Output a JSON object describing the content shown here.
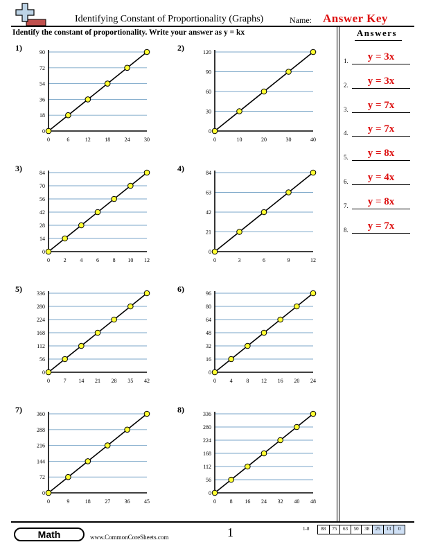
{
  "header": {
    "title": "Identifying Constant of Proportionality (Graphs)",
    "name_label": "Name:",
    "name_value": "Answer Key"
  },
  "instructions": "Identify the constant of proportionality. Write your answer as y = kx",
  "answers": {
    "title": "Answers",
    "items": [
      {
        "num": "1.",
        "value": "y = 3x"
      },
      {
        "num": "2.",
        "value": "y = 3x"
      },
      {
        "num": "3.",
        "value": "y = 7x"
      },
      {
        "num": "4.",
        "value": "y = 7x"
      },
      {
        "num": "5.",
        "value": "y = 8x"
      },
      {
        "num": "6.",
        "value": "y = 4x"
      },
      {
        "num": "7.",
        "value": "y = 8x"
      },
      {
        "num": "8.",
        "value": "y = 7x"
      }
    ]
  },
  "problems": [
    {
      "num": "1)",
      "xticks": [
        0,
        6,
        12,
        18,
        24,
        30
      ],
      "yticks": [
        0,
        18,
        36,
        54,
        72,
        90
      ],
      "points": [
        [
          0,
          0
        ],
        [
          6,
          18
        ],
        [
          12,
          36
        ],
        [
          18,
          54
        ],
        [
          24,
          72
        ],
        [
          30,
          90
        ]
      ]
    },
    {
      "num": "2)",
      "xticks": [
        0,
        10,
        20,
        30,
        40
      ],
      "yticks": [
        0,
        30,
        60,
        90,
        120
      ],
      "points": [
        [
          0,
          0
        ],
        [
          10,
          30
        ],
        [
          20,
          60
        ],
        [
          30,
          90
        ],
        [
          40,
          120
        ]
      ]
    },
    {
      "num": "3)",
      "xticks": [
        0,
        2,
        4,
        6,
        8,
        10,
        12
      ],
      "yticks": [
        0,
        14,
        28,
        42,
        56,
        70,
        84
      ],
      "points": [
        [
          0,
          0
        ],
        [
          2,
          14
        ],
        [
          4,
          28
        ],
        [
          6,
          42
        ],
        [
          8,
          56
        ],
        [
          10,
          70
        ],
        [
          12,
          84
        ]
      ]
    },
    {
      "num": "4)",
      "xticks": [
        0,
        3,
        6,
        9,
        12
      ],
      "yticks": [
        0,
        21,
        42,
        63,
        84
      ],
      "points": [
        [
          0,
          0
        ],
        [
          3,
          21
        ],
        [
          6,
          42
        ],
        [
          9,
          63
        ],
        [
          12,
          84
        ]
      ]
    },
    {
      "num": "5)",
      "xticks": [
        0,
        7,
        14,
        21,
        28,
        35,
        42
      ],
      "yticks": [
        0,
        56,
        112,
        168,
        224,
        280,
        336
      ],
      "points": [
        [
          0,
          0
        ],
        [
          7,
          56
        ],
        [
          14,
          112
        ],
        [
          21,
          168
        ],
        [
          28,
          224
        ],
        [
          35,
          280
        ],
        [
          42,
          336
        ]
      ]
    },
    {
      "num": "6)",
      "xticks": [
        0,
        4,
        8,
        12,
        16,
        20,
        24
      ],
      "yticks": [
        0,
        16,
        32,
        48,
        64,
        80,
        96
      ],
      "points": [
        [
          0,
          0
        ],
        [
          4,
          16
        ],
        [
          8,
          32
        ],
        [
          12,
          48
        ],
        [
          16,
          64
        ],
        [
          20,
          80
        ],
        [
          24,
          96
        ]
      ]
    },
    {
      "num": "7)",
      "xticks": [
        0,
        9,
        18,
        27,
        36,
        45
      ],
      "yticks": [
        0,
        72,
        144,
        216,
        288,
        360
      ],
      "points": [
        [
          0,
          0
        ],
        [
          9,
          72
        ],
        [
          18,
          144
        ],
        [
          27,
          216
        ],
        [
          36,
          288
        ],
        [
          45,
          360
        ]
      ]
    },
    {
      "num": "8)",
      "xticks": [
        0,
        8,
        16,
        24,
        32,
        40,
        48
      ],
      "yticks": [
        0,
        56,
        112,
        168,
        224,
        280,
        336
      ],
      "points": [
        [
          0,
          0
        ],
        [
          8,
          56
        ],
        [
          16,
          112
        ],
        [
          24,
          168
        ],
        [
          32,
          224
        ],
        [
          40,
          280
        ],
        [
          48,
          336
        ]
      ]
    }
  ],
  "footer": {
    "brand": "Math",
    "site": "www.CommonCoreSheets.com",
    "page": "1",
    "score_label": "1-8",
    "scores": [
      "88",
      "75",
      "63",
      "50",
      "38",
      "25",
      "13",
      "0"
    ]
  },
  "colors": {
    "answer": "#dd1111",
    "grid": "#7aa6c8",
    "point_fill": "#ffff33",
    "highlight": "#cfe0f5"
  }
}
